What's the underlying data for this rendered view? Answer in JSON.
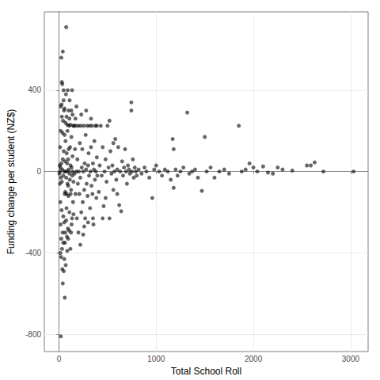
{
  "chart_data": {
    "type": "scatter",
    "x_label": "Total School Roll",
    "y_label": "Funding change per student (NZ$)",
    "x": [
      5,
      8,
      10,
      12,
      15,
      18,
      20,
      22,
      25,
      28,
      30,
      32,
      35,
      38,
      40,
      40,
      42,
      45,
      48,
      50,
      52,
      55,
      58,
      60,
      62,
      65,
      68,
      70,
      72,
      75,
      78,
      80,
      82,
      85,
      88,
      90,
      92,
      95,
      98,
      100,
      105,
      108,
      110,
      112,
      115,
      118,
      120,
      125,
      128,
      130,
      135,
      138,
      140,
      145,
      148,
      10,
      15,
      20,
      25,
      30,
      35,
      40,
      45,
      50,
      55,
      60,
      65,
      70,
      75,
      80,
      85,
      90,
      95,
      100,
      110,
      120,
      130,
      140,
      150,
      15,
      25,
      18,
      28,
      35,
      45,
      55,
      65,
      75,
      85,
      95,
      105,
      125,
      135,
      150,
      20,
      30,
      38,
      48,
      58,
      68,
      78,
      88,
      98,
      108,
      118,
      128,
      140,
      155,
      160,
      165,
      170,
      175,
      180,
      185,
      190,
      195,
      200,
      205,
      210,
      215,
      220,
      225,
      230,
      235,
      240,
      245,
      250,
      255,
      260,
      265,
      270,
      275,
      280,
      285,
      290,
      295,
      300,
      305,
      310,
      315,
      320,
      325,
      330,
      335,
      340,
      345,
      350,
      355,
      360,
      365,
      370,
      375,
      380,
      385,
      390,
      395,
      180,
      200,
      230,
      260,
      300,
      330,
      220,
      170,
      250,
      280,
      350,
      390,
      410,
      420,
      430,
      440,
      450,
      460,
      470,
      480,
      490,
      500,
      510,
      520,
      530,
      540,
      550,
      560,
      570,
      580,
      590,
      600,
      610,
      620,
      630,
      640,
      650,
      660,
      670,
      680,
      690,
      700,
      710,
      720,
      730,
      745,
      745,
      750,
      760,
      770,
      780,
      790,
      800,
      450,
      520,
      480,
      600,
      560,
      820,
      850,
      880,
      900,
      930,
      960,
      980,
      1000,
      1030,
      1060,
      1090,
      1120,
      1150,
      1170,
      1180,
      1200,
      1220,
      1250,
      1280,
      1320,
      1340,
      1370,
      1400,
      1430,
      1470,
      1500,
      1520,
      1560,
      1600,
      1650,
      1700,
      1750,
      1180,
      1850,
      1880,
      1920,
      1960,
      2000,
      2040,
      2100,
      2150,
      2200,
      2250,
      2300,
      2400,
      2550,
      2590,
      2630,
      2720,
      3030
    ],
    "values": [
      -10,
      30,
      -60,
      120,
      -150,
      200,
      -810,
      -420,
      560,
      330,
      440,
      -380,
      430,
      -300,
      590,
      -550,
      250,
      -220,
      400,
      -490,
      300,
      -250,
      180,
      -620,
      -350,
      -100,
      150,
      -460,
      380,
      710,
      -180,
      90,
      -320,
      230,
      -60,
      400,
      -280,
      60,
      -120,
      10,
      225,
      -200,
      350,
      -40,
      120,
      -380,
      30,
      -90,
      170,
      -260,
      400,
      -20,
      75,
      -150,
      225,
      0,
      20,
      -30,
      40,
      -50,
      10,
      60,
      -20,
      100,
      0,
      -110,
      50,
      0,
      -30,
      -110,
      40,
      0,
      -70,
      110,
      -10,
      -110,
      20,
      0,
      -50,
      -400,
      -330,
      -260,
      -190,
      -480,
      -350,
      -430,
      -300,
      -240,
      -390,
      -330,
      -290,
      -300,
      -230,
      -210,
      320,
      270,
      190,
      350,
      310,
      240,
      270,
      200,
      300,
      260,
      230,
      300,
      280,
      225,
      -10,
      110,
      -110,
      225,
      0,
      -230,
      60,
      -60,
      225,
      0,
      -110,
      140,
      -30,
      225,
      -200,
      20,
      110,
      -150,
      0,
      225,
      -90,
      40,
      -230,
      180,
      10,
      -60,
      225,
      -120,
      30,
      90,
      -20,
      225,
      -180,
      0,
      120,
      -70,
      225,
      -110,
      40,
      -260,
      10,
      150,
      -40,
      225,
      0,
      -130,
      70,
      -20,
      320,
      -300,
      280,
      -270,
      -250,
      260,
      -360,
      260,
      -310,
      300,
      -230,
      225,
      -100,
      30,
      225,
      -20,
      120,
      -170,
      0,
      60,
      -50,
      225,
      20,
      -230,
      100,
      -10,
      30,
      -90,
      0,
      160,
      -40,
      10,
      120,
      -165,
      0,
      -195,
      50,
      -20,
      20,
      110,
      0,
      -60,
      30,
      10,
      -10,
      340,
      300,
      0,
      60,
      -30,
      20,
      0,
      -20,
      -230,
      250,
      -130,
      -110,
      140,
      10,
      -10,
      20,
      0,
      -30,
      -130,
      10,
      30,
      0,
      -20,
      10,
      0,
      -40,
      160,
      110,
      10,
      -20,
      0,
      20,
      290,
      -10,
      0,
      10,
      -30,
      -95,
      170,
      0,
      20,
      -30,
      0,
      10,
      -10,
      -80,
      225,
      0,
      10,
      40,
      20,
      0,
      25,
      -5,
      -10,
      20,
      10,
      5,
      30,
      30,
      45,
      0,
      0
    ],
    "color": "#000000",
    "marker": "circle",
    "xlim": [
      -150,
      3180
    ],
    "xticks": [
      0,
      1000,
      2000,
      3000
    ],
    "ylim": [
      -885,
      785
    ],
    "yticks": [
      -800,
      -400,
      0,
      400
    ],
    "grid": true
  }
}
